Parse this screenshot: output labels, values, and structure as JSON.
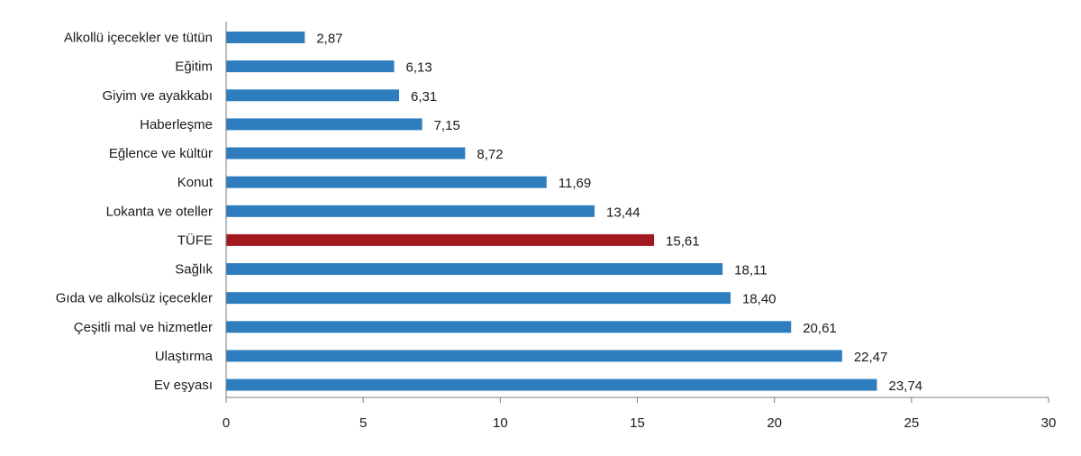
{
  "chart_data": {
    "type": "bar",
    "orientation": "horizontal",
    "categories": [
      "Alkollü içecekler ve tütün",
      "Eğitim",
      "Giyim ve ayakkabı",
      "Haberleşme",
      "Eğlence ve kültür",
      "Konut",
      "Lokanta ve oteller",
      "TÜFE",
      "Sağlık",
      "Gıda ve alkolsüz içecekler",
      "Çeşitli mal ve hizmetler",
      "Ulaştırma",
      "Ev eşyası"
    ],
    "values": [
      2.87,
      6.13,
      6.31,
      7.15,
      8.72,
      11.69,
      13.44,
      15.61,
      18.11,
      18.4,
      20.61,
      22.47,
      23.74
    ],
    "value_labels": [
      "2,87",
      "6,13",
      "6,31",
      "7,15",
      "8,72",
      "11,69",
      "13,44",
      "15,61",
      "18,11",
      "18,40",
      "20,61",
      "22,47",
      "23,74"
    ],
    "highlight_category": "TÜFE",
    "colors": {
      "default": "#2e7ebf",
      "highlight": "#a31a1e"
    },
    "title": "",
    "xlabel": "",
    "ylabel": "",
    "xlim": [
      0,
      30
    ],
    "xticks": [
      0,
      5,
      10,
      15,
      20,
      25,
      30
    ],
    "grid": false,
    "legend": "none"
  }
}
